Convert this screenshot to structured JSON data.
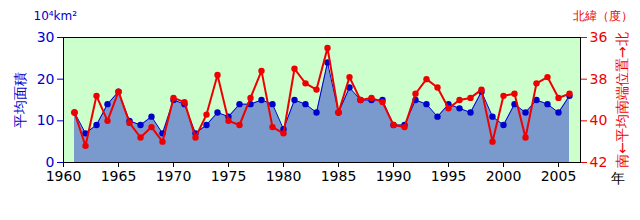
{
  "chart_data": {
    "type": "area",
    "x": [
      1961,
      1962,
      1963,
      1964,
      1965,
      1966,
      1967,
      1968,
      1969,
      1970,
      1971,
      1972,
      1973,
      1974,
      1975,
      1976,
      1977,
      1978,
      1979,
      1980,
      1981,
      1982,
      1983,
      1984,
      1985,
      1986,
      1987,
      1988,
      1989,
      1990,
      1991,
      1992,
      1993,
      1994,
      1995,
      1996,
      1997,
      1998,
      1999,
      2000,
      2001,
      2002,
      2003,
      2004,
      2005,
      2006
    ],
    "series": [
      {
        "name": "平均面積",
        "type": "area",
        "color": "#0000cc",
        "marker": "circle",
        "values": [
          12,
          7,
          9,
          14,
          17,
          10,
          9,
          11,
          7,
          15,
          14,
          7,
          9,
          12,
          11,
          14,
          14,
          15,
          14,
          8,
          15,
          14,
          12,
          24,
          12,
          18,
          15,
          15,
          15,
          9,
          9,
          15,
          14,
          11,
          14,
          13,
          12,
          17,
          11,
          9,
          14,
          12,
          15,
          14,
          12,
          16
        ]
      },
      {
        "name": "南←平均南端位置→北",
        "type": "line",
        "axis": "y2",
        "color": "#ee0000",
        "marker": "circle",
        "values": [
          39.6,
          41.2,
          38.8,
          40.0,
          38.6,
          40.1,
          40.8,
          40.3,
          41.0,
          38.9,
          39.1,
          40.8,
          39.7,
          37.8,
          40.0,
          40.2,
          38.9,
          37.6,
          40.3,
          40.6,
          37.5,
          38.2,
          38.5,
          36.5,
          39.6,
          37.9,
          39.0,
          38.9,
          39.1,
          40.2,
          40.3,
          38.7,
          38.0,
          38.4,
          39.4,
          39.0,
          38.9,
          38.5,
          41.0,
          38.8,
          38.7,
          40.8,
          38.2,
          37.9,
          38.9,
          38.7
        ]
      }
    ],
    "xlabel": "年",
    "ylabel": "10⁴km²",
    "y2label": "北緯（度）",
    "xlim": [
      1960,
      2007
    ],
    "xticks": [
      1960,
      1965,
      1970,
      1975,
      1980,
      1985,
      1990,
      1995,
      2000,
      2005
    ],
    "ylim": [
      0,
      30
    ],
    "yticks": [
      0,
      10,
      20,
      30
    ],
    "y2lim": [
      42,
      36
    ],
    "y2ticks": [
      36,
      38,
      40,
      42
    ],
    "grid": false,
    "color": "#ccffcc"
  }
}
